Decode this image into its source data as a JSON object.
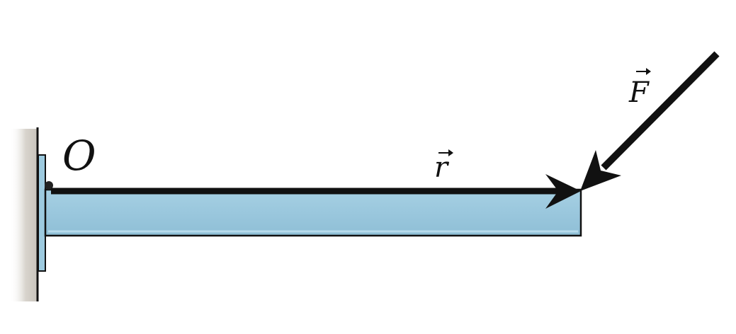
{
  "labels": {
    "origin": "O",
    "position_vector": "r",
    "force_vector": "F"
  },
  "colors": {
    "beam_fill": "#9dcadf",
    "beam_edge": "#111111",
    "wall_shadow": "#cfcbc4",
    "vector": "#111111"
  }
}
